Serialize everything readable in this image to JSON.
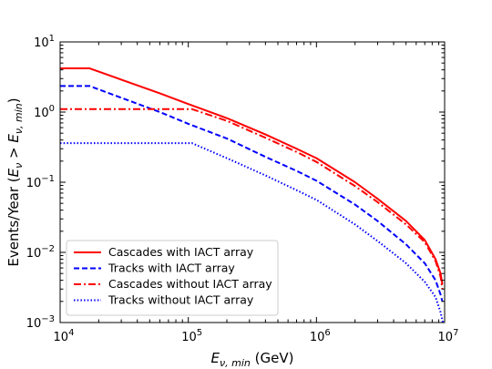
{
  "chart_data": {
    "type": "line",
    "xlabel": "E_{ν,min} (GeV)",
    "ylabel": "Events/Year (E_ν > E_{ν,min})",
    "xscale": "log",
    "yscale": "log",
    "xlim": [
      10000,
      10000000
    ],
    "ylim": [
      0.001,
      10
    ],
    "grid": false,
    "legend_position": "lower-left",
    "x_tick_labels": [
      {
        "value": 10000,
        "base": "10",
        "exp": "4"
      },
      {
        "value": 100000,
        "base": "10",
        "exp": "5"
      },
      {
        "value": 1000000,
        "base": "10",
        "exp": "6"
      },
      {
        "value": 10000000,
        "base": "10",
        "exp": "7"
      }
    ],
    "y_tick_labels": [
      {
        "value": 0.001,
        "base": "10",
        "exp": "−3"
      },
      {
        "value": 0.01,
        "base": "10",
        "exp": "−2"
      },
      {
        "value": 0.1,
        "base": "10",
        "exp": "−1"
      },
      {
        "value": 1,
        "base": "10",
        "exp": "0"
      },
      {
        "value": 10,
        "base": "10",
        "exp": "1"
      }
    ],
    "series": [
      {
        "name": "Cascades with IACT array",
        "color": "#ff0000",
        "style": "solid",
        "x": [
          10000,
          17000,
          30000,
          60000,
          100000,
          200000,
          400000,
          700000,
          1000000,
          2000000,
          3000000,
          5000000,
          7000000,
          8500000,
          9300000,
          9600000
        ],
        "y": [
          4.2,
          4.2,
          2.9,
          1.85,
          1.3,
          0.82,
          0.48,
          0.3,
          0.22,
          0.1,
          0.058,
          0.028,
          0.015,
          0.008,
          0.005,
          0.0035
        ]
      },
      {
        "name": "Tracks with IACT array",
        "color": "#0000ff",
        "style": "dashed",
        "x": [
          10000,
          17000,
          30000,
          60000,
          100000,
          200000,
          400000,
          700000,
          1000000,
          2000000,
          3000000,
          5000000,
          7000000,
          8500000,
          9300000,
          9600000
        ],
        "y": [
          2.35,
          2.35,
          1.6,
          1.0,
          0.68,
          0.42,
          0.23,
          0.145,
          0.105,
          0.048,
          0.028,
          0.013,
          0.007,
          0.004,
          0.0025,
          0.002
        ]
      },
      {
        "name": "Cascades without IACT array",
        "color": "#ff0000",
        "style": "dashdot",
        "x": [
          10000,
          107000,
          200000,
          400000,
          700000,
          1000000,
          2000000,
          3000000,
          5000000,
          7000000,
          8500000,
          9300000,
          9600000
        ],
        "y": [
          1.1,
          1.1,
          0.75,
          0.43,
          0.27,
          0.195,
          0.088,
          0.052,
          0.025,
          0.014,
          0.0075,
          0.0045,
          0.003
        ]
      },
      {
        "name": "Tracks without IACT array",
        "color": "#0000ff",
        "style": "dotted",
        "x": [
          10000,
          107000,
          200000,
          400000,
          700000,
          1000000,
          2000000,
          3000000,
          5000000,
          7000000,
          8500000,
          9300000,
          9700000
        ],
        "y": [
          0.36,
          0.36,
          0.22,
          0.125,
          0.077,
          0.056,
          0.025,
          0.0145,
          0.007,
          0.0038,
          0.0023,
          0.0014,
          0.001
        ]
      }
    ]
  }
}
